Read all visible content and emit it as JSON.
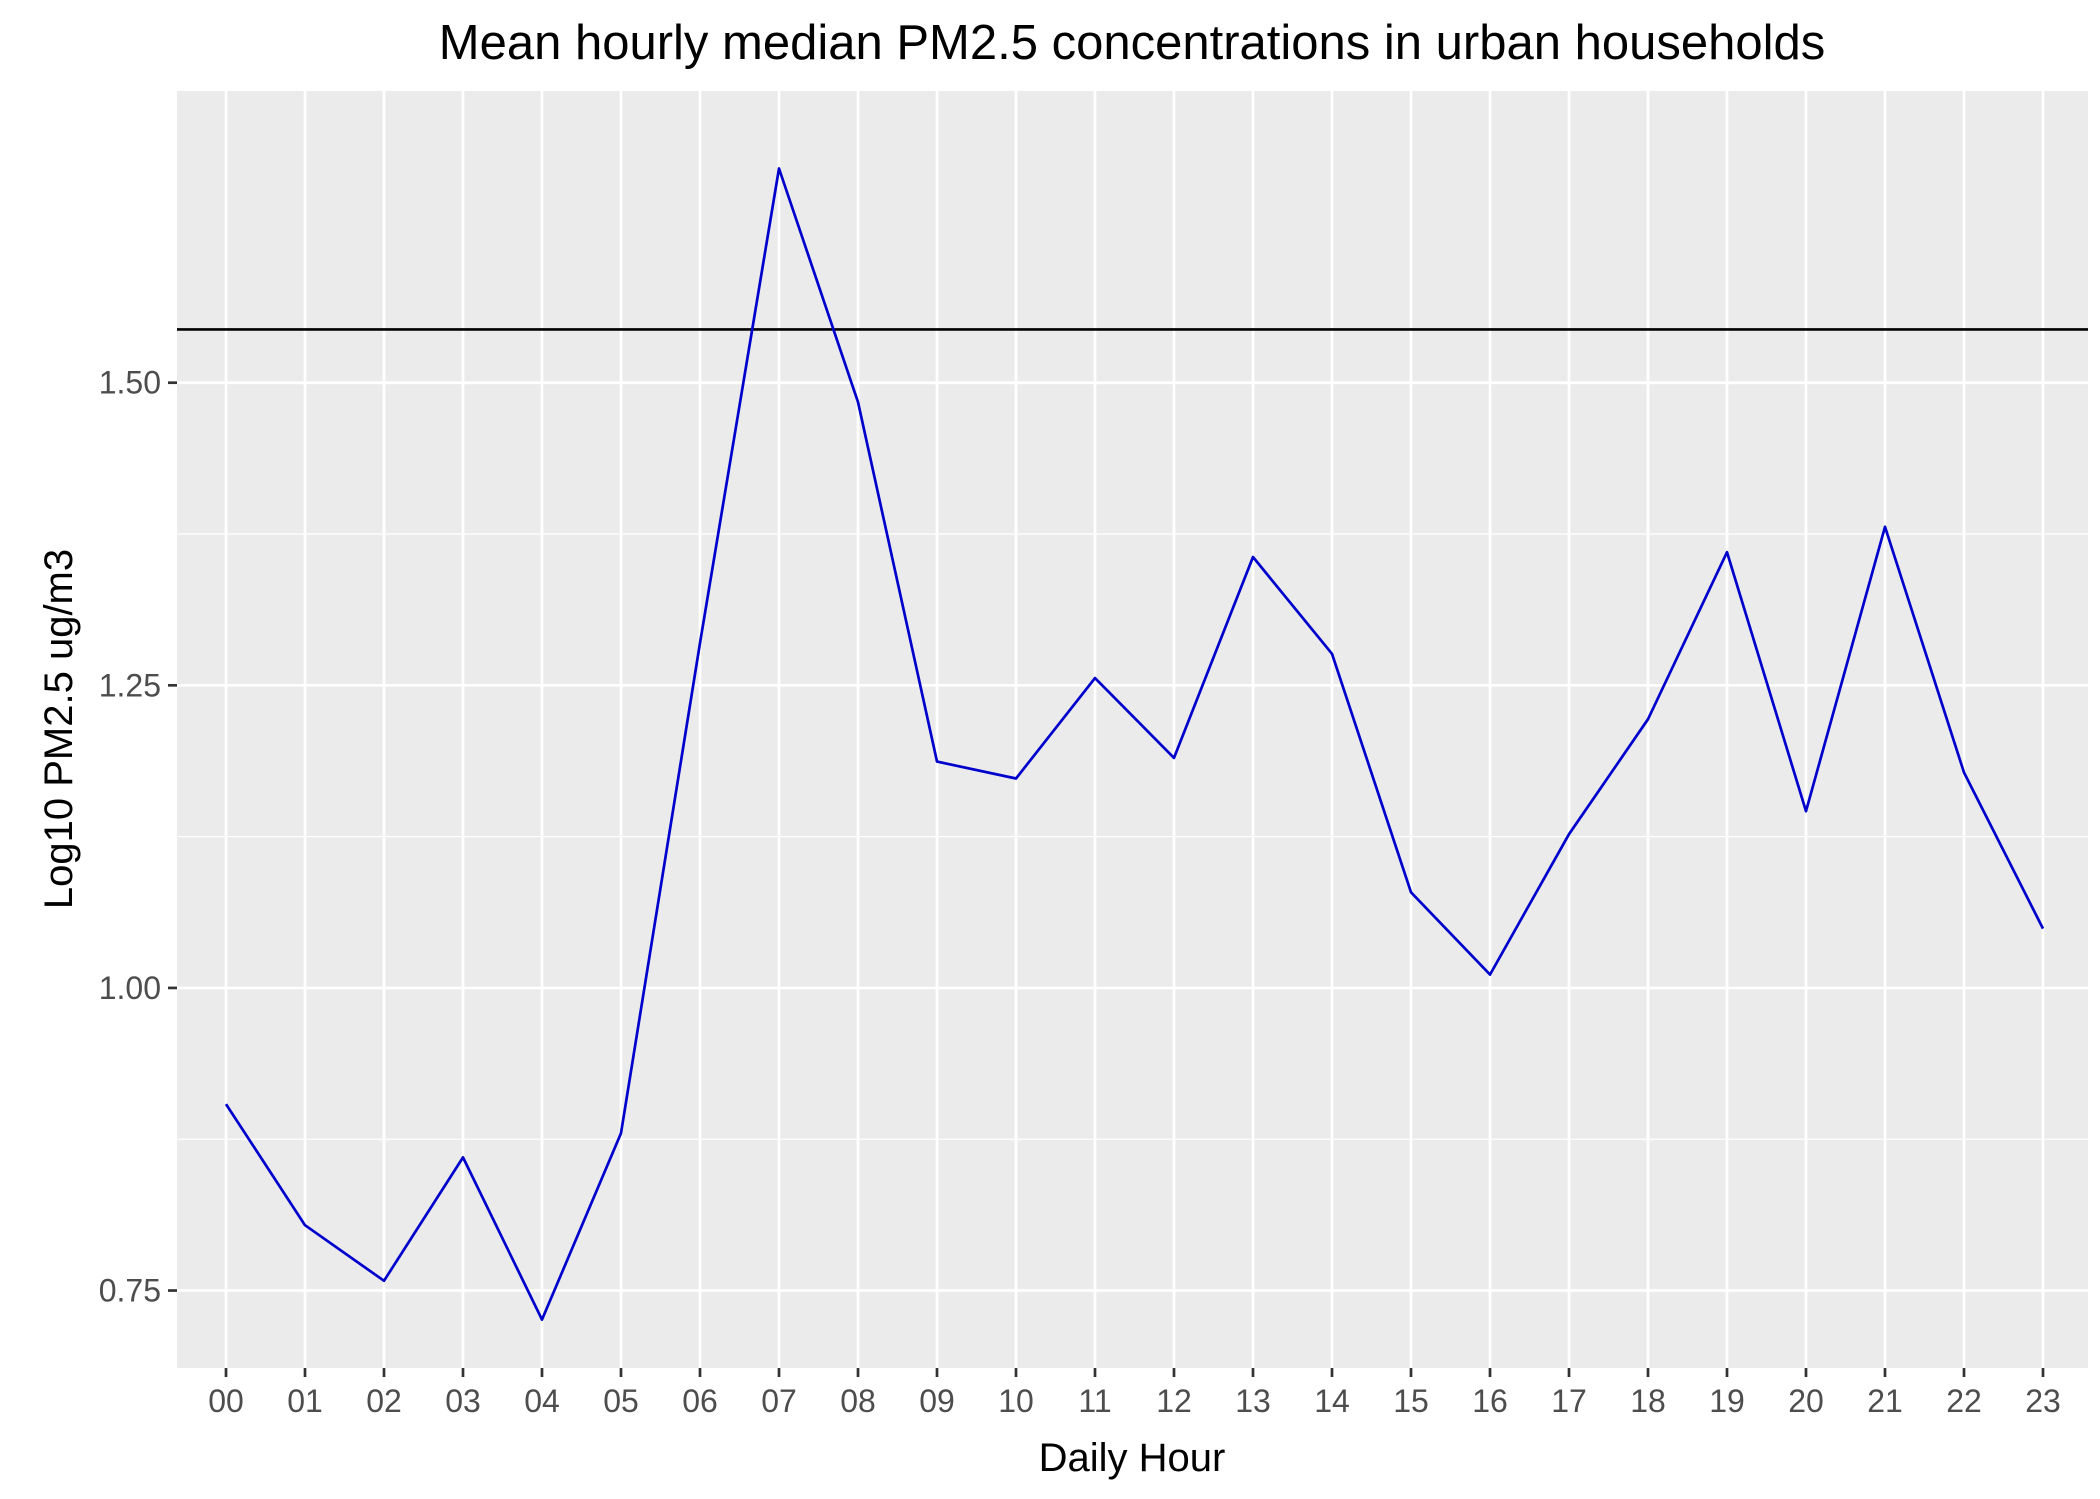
{
  "chart_data": {
    "type": "line",
    "title": "Mean hourly median PM2.5 concentrations in urban households",
    "xlabel": "Daily Hour",
    "ylabel": "Log10 PM2.5 ug/m3",
    "categories": [
      "00",
      "01",
      "02",
      "03",
      "04",
      "05",
      "06",
      "07",
      "08",
      "09",
      "10",
      "11",
      "12",
      "13",
      "14",
      "15",
      "16",
      "17",
      "18",
      "19",
      "20",
      "21",
      "22",
      "23"
    ],
    "series": [
      {
        "values": [
          0.904,
          0.804,
          0.758,
          0.86,
          0.726,
          0.88,
          1.285,
          1.677,
          1.484,
          1.187,
          1.173,
          1.256,
          1.19,
          1.356,
          1.276,
          1.079,
          1.011,
          1.127,
          1.222,
          1.36,
          1.146,
          1.381,
          1.178,
          1.049
        ],
        "color": "#0000cd"
      }
    ],
    "reference_line": {
      "y": 1.544,
      "color": "#000000"
    },
    "ylim": [
      0.686,
      1.741
    ],
    "yticks": [
      0.75,
      1.0,
      1.25,
      1.5
    ],
    "ytick_labels": [
      "0.75",
      "1.00",
      "1.25",
      "1.50"
    ],
    "grid": true,
    "legend": "none",
    "colors": {
      "panel": "#ebebeb",
      "grid": "#ffffff",
      "tick_text": "#4d4d4d"
    }
  }
}
